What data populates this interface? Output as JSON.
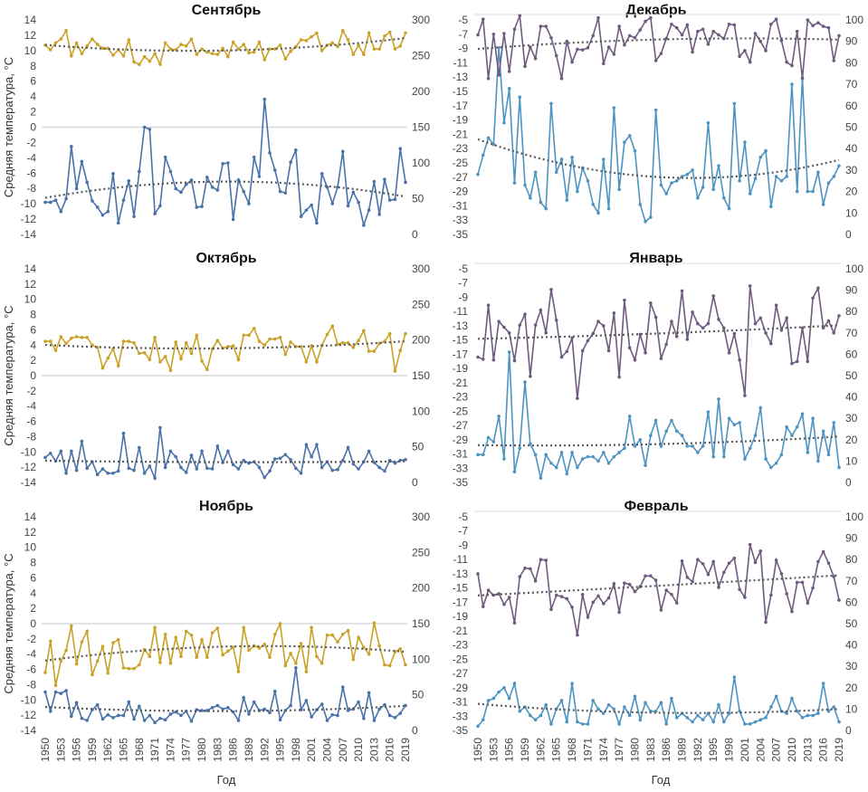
{
  "colors": {
    "temp_left": "#c9a227",
    "precip_left": "#4a72a8",
    "temp_right": "#6f5b7e",
    "precip_right": "#4d94c2",
    "trend": "#5a5a5a",
    "grid": "#d9d9d9"
  },
  "axis_label_y": "Средняя температура, °С",
  "axis_label_x": "Год",
  "chart_data": [
    {
      "type": "line",
      "title": "Сентябрь",
      "ylim_left": [
        -14,
        14
      ],
      "yticks_left_step": 2,
      "ylim_right": [
        0,
        300
      ],
      "yticks_right_step": 50,
      "x_start": 1950,
      "x_tick_step": 3,
      "trendline": "dotted",
      "temperature": [
        10.7,
        10.1,
        11,
        11.5,
        12.6,
        9.3,
        11,
        9.6,
        10.6,
        11.5,
        10.8,
        10.3,
        10.3,
        9.4,
        10.1,
        9.3,
        11.4,
        8.5,
        8.2,
        9.2,
        8.6,
        9.6,
        8.2,
        11,
        10.2,
        10.1,
        10.8,
        10.6,
        11.5,
        9.5,
        10.2,
        9.8,
        9.6,
        9.5,
        10.3,
        9.2,
        11.1,
        10.2,
        10.8,
        9.7,
        9.8,
        11.1,
        8.8,
        10.2,
        10.2,
        10.7,
        8.9,
        9.9,
        10.5,
        11.4,
        11.3,
        11.8,
        12.3,
        10,
        10.7,
        11,
        10.5,
        12.6,
        11.4,
        9.5,
        10.7,
        9.5,
        12.3,
        10.2,
        10.2,
        11.9,
        12.4,
        10.2,
        10.6,
        12.3
      ],
      "precipitation": [
        45,
        45,
        48,
        32,
        50,
        123,
        64,
        102,
        73,
        47,
        38,
        27,
        32,
        85,
        16,
        48,
        75,
        25,
        88,
        150,
        147,
        29,
        40,
        108,
        88,
        64,
        59,
        70,
        76,
        38,
        39,
        80,
        66,
        62,
        99,
        100,
        21,
        76,
        60,
        43,
        108,
        81,
        189,
        114,
        90,
        60,
        58,
        101,
        118,
        25,
        34,
        41,
        16,
        85,
        66,
        43,
        66,
        116,
        40,
        59,
        45,
        13,
        34,
        74,
        28,
        77,
        48,
        49,
        120,
        73
      ]
    },
    {
      "type": "line",
      "title": "Октябрь",
      "ylim_left": [
        -14,
        14
      ],
      "yticks_left_step": 2,
      "ylim_right": [
        0,
        300
      ],
      "yticks_right_step": 50,
      "x_start": 1950,
      "x_tick_step": 3,
      "trendline": "dotted",
      "temperature": [
        4.5,
        4.5,
        3.3,
        5.1,
        4.2,
        4.9,
        5.1,
        5,
        5,
        4,
        3.7,
        1,
        2.3,
        3.5,
        1.3,
        4.5,
        4.5,
        4.3,
        2.9,
        3,
        2.1,
        5,
        1.8,
        2.5,
        0.7,
        4.4,
        2.2,
        4.3,
        2.9,
        5.3,
        1.9,
        0.8,
        3.5,
        4.6,
        3.6,
        3.8,
        3.9,
        2.1,
        5.3,
        5.3,
        6.2,
        4.5,
        4,
        4.8,
        4.8,
        5,
        2.8,
        4.4,
        3.8,
        3.8,
        1.8,
        3.9,
        1.8,
        4,
        5.4,
        6.5,
        4.1,
        4.3,
        4.3,
        3.7,
        4.6,
        5.9,
        3.2,
        3.2,
        4.2,
        4.5,
        5.5,
        0.6,
        3.3,
        5.5
      ],
      "precipitation": [
        35,
        41,
        30,
        44,
        13,
        44,
        17,
        58,
        20,
        29,
        11,
        19,
        13,
        13,
        16,
        69,
        20,
        17,
        49,
        13,
        23,
        6,
        77,
        21,
        44,
        36,
        21,
        14,
        38,
        19,
        44,
        20,
        19,
        51,
        28,
        44,
        25,
        19,
        31,
        27,
        29,
        21,
        7,
        16,
        33,
        34,
        39,
        32,
        20,
        13,
        53,
        36,
        53,
        21,
        29,
        17,
        18,
        31,
        49,
        26,
        19,
        29,
        44,
        28,
        21,
        16,
        31,
        27,
        31,
        32
      ]
    },
    {
      "type": "line",
      "title": "Ноябрь",
      "ylim_left": [
        -14,
        14
      ],
      "yticks_left_step": 2,
      "ylim_right": [
        0,
        300
      ],
      "yticks_right_step": 50,
      "x_start": 1950,
      "x_tick_step": 3,
      "trendline": "dotted",
      "temperature": [
        -6.4,
        -2.3,
        -8.1,
        -4.9,
        -3.5,
        -0.3,
        -5.3,
        -2.4,
        -1,
        -6.7,
        -4.9,
        -3,
        -6.5,
        -2.5,
        -2.1,
        -5.8,
        -5.9,
        -5.9,
        -5.4,
        -3.4,
        -4.3,
        -0.5,
        -5.1,
        -1.4,
        -5.2,
        -1.8,
        -4.3,
        -1,
        -1.5,
        -4.4,
        -2.1,
        -4.4,
        -1.2,
        -0.6,
        -4.1,
        -3.6,
        -3.1,
        -6.3,
        -0.5,
        -3.5,
        -2.9,
        -3.2,
        -2.7,
        -4.4,
        -1.4,
        0,
        -5.5,
        -3.9,
        -5.2,
        -2.6,
        -6.3,
        -0.5,
        -4.3,
        -5.2,
        -1.5,
        -1.5,
        -2.4,
        -1.4,
        -0.9,
        -4.7,
        -1.8,
        -3.1,
        -4,
        0.1,
        -2.9,
        -5.4,
        -5.5,
        -3.7,
        -3.3,
        -5.4
      ],
      "precipitation": [
        54,
        27,
        54,
        52,
        56,
        20,
        39,
        17,
        14,
        29,
        36,
        16,
        22,
        18,
        21,
        21,
        40,
        16,
        34,
        14,
        21,
        11,
        17,
        15,
        23,
        26,
        21,
        27,
        13,
        29,
        28,
        28,
        32,
        35,
        30,
        32,
        26,
        14,
        46,
        23,
        40,
        28,
        30,
        25,
        55,
        15,
        28,
        35,
        88,
        29,
        42,
        19,
        29,
        37,
        14,
        22,
        21,
        61,
        28,
        30,
        40,
        17,
        53,
        14,
        30,
        36,
        21,
        18,
        24,
        35
      ]
    },
    {
      "type": "line",
      "title": "Декабрь",
      "ylim_left": [
        -35,
        -5
      ],
      "yticks_left_step": 2,
      "ylim_right": [
        0,
        100
      ],
      "yticks_right_step": 10,
      "x_start": 1950,
      "x_tick_step": 3,
      "trendline": "dotted",
      "temperature": [
        -7.1,
        -4.9,
        -13.2,
        -7,
        -12.7,
        -6.9,
        -12.2,
        -6.3,
        -4.4,
        -11.5,
        -8.8,
        -10.4,
        -5.9,
        -5.9,
        -7.5,
        -10,
        -13.2,
        -8,
        -10.9,
        -9.1,
        -9.2,
        -8.9,
        -7.2,
        -4.7,
        -11.1,
        -8.8,
        -9.8,
        -5.9,
        -8.5,
        -7.2,
        -7.5,
        -6.4,
        -5.2,
        -4.7,
        -10.7,
        -9.7,
        -7.6,
        -5.6,
        -6.1,
        -7.1,
        -5.7,
        -9.5,
        -6.6,
        -6.3,
        -8.4,
        -6.6,
        -7.1,
        -7.6,
        -5.6,
        -5.7,
        -10.1,
        -9.3,
        -10.9,
        -6.9,
        -8,
        -9.3,
        -5.6,
        -4.9,
        -7.9,
        -10.9,
        -11.4,
        -6.6,
        -13.2,
        -5,
        -5.8,
        -5.4,
        -5.9,
        -6.1,
        -10.7,
        -7.2
      ],
      "precipitation": [
        28,
        37,
        45,
        42,
        87,
        52,
        68,
        24,
        64,
        23,
        17,
        29,
        15,
        12,
        61,
        29,
        35,
        16,
        36,
        20,
        31,
        25,
        14,
        10,
        35,
        12,
        59,
        21,
        43,
        46,
        39,
        14,
        6,
        8,
        58,
        23,
        19,
        24,
        25,
        27,
        28,
        30,
        17,
        22,
        52,
        21,
        32,
        17,
        12,
        61,
        25,
        43,
        19,
        26,
        36,
        39,
        13,
        27,
        25,
        27,
        70,
        20,
        73,
        20,
        20,
        29,
        14,
        24,
        27,
        32
      ]
    },
    {
      "type": "line",
      "title": "Январь",
      "ylim_left": [
        -35,
        -5
      ],
      "yticks_left_step": 2,
      "ylim_right": [
        0,
        100
      ],
      "yticks_right_step": 10,
      "x_start": 1950,
      "x_tick_step": 3,
      "trendline": "dotted",
      "temperature": [
        -17.4,
        -17.7,
        -10.1,
        -17.8,
        -12.4,
        -13.2,
        -14,
        -17.9,
        -12.9,
        -11.4,
        -20.1,
        -12.9,
        -10.8,
        -14,
        -7.9,
        -12.2,
        -17.4,
        -16.6,
        -14.7,
        -23.2,
        -16.5,
        -15.1,
        -14.1,
        -12.4,
        -13,
        -16.5,
        -11.2,
        -20.2,
        -9.4,
        -16.1,
        -17.8,
        -14.2,
        -16.8,
        -9.8,
        -11.8,
        -17.6,
        -15.6,
        -12.4,
        -14.5,
        -8.1,
        -14.9,
        -11.1,
        -12.7,
        -13.3,
        -12.7,
        -8.8,
        -12.1,
        -13.3,
        -16.8,
        -14.1,
        -17.8,
        -22.8,
        -7.4,
        -12.7,
        -11.9,
        -14,
        -15.5,
        -10.1,
        -13.6,
        -11.9,
        -18.3,
        -18,
        -13.3,
        -18,
        -9.1,
        -7.7,
        -13.3,
        -12.3,
        -14,
        -11.6
      ],
      "precipitation": [
        13,
        13,
        21,
        19,
        31,
        11,
        61,
        5,
        16,
        47,
        18,
        13,
        2,
        13,
        9,
        7,
        14,
        4,
        14,
        7,
        11,
        12,
        12,
        10,
        14,
        9,
        12,
        14,
        16,
        31,
        17,
        20,
        8,
        22,
        29,
        17,
        24,
        29,
        24,
        22,
        17,
        17,
        14,
        17,
        33,
        12,
        39,
        12,
        30,
        27,
        28,
        11,
        16,
        22,
        35,
        11,
        7,
        9,
        13,
        26,
        22,
        26,
        32,
        14,
        30,
        10,
        24,
        13,
        28,
        7
      ]
    },
    {
      "type": "line",
      "title": "Февраль",
      "ylim_left": [
        -35,
        -5
      ],
      "yticks_left_step": 2,
      "ylim_right": [
        0,
        100
      ],
      "yticks_right_step": 10,
      "x_start": 1950,
      "x_tick_step": 3,
      "trendline": "dotted",
      "temperature": [
        -13,
        -17.6,
        -15.3,
        -16,
        -15.8,
        -17.3,
        -16.3,
        -19.9,
        -13.4,
        -12.2,
        -12.3,
        -14,
        -11,
        -11.1,
        -18,
        -16,
        -16.2,
        -16.5,
        -17.7,
        -21.6,
        -15.9,
        -19.1,
        -17,
        -16.1,
        -17.2,
        -16.4,
        -14.4,
        -18.4,
        -14.3,
        -14.5,
        -15.5,
        -14.8,
        -13.3,
        -13.3,
        -13.9,
        -18.1,
        -15.3,
        -15.9,
        -17.1,
        -11.2,
        -13.5,
        -14.1,
        -11,
        -11.6,
        -13.1,
        -11.3,
        -14.9,
        -12.8,
        -11.5,
        -10.8,
        -15.2,
        -16.3,
        -8.9,
        -11.4,
        -9.8,
        -19.8,
        -16,
        -11.1,
        -13,
        -15.8,
        -18.3,
        -14.2,
        -14.2,
        -17.1,
        -15,
        -11.3,
        -9.9,
        -11.5,
        -13.4,
        -16.7
      ],
      "precipitation": [
        2,
        5,
        14,
        15,
        18,
        20,
        15,
        22,
        9,
        11,
        7,
        5,
        7,
        12,
        3,
        10,
        14,
        4,
        22,
        4,
        3,
        3,
        14,
        10,
        8,
        12,
        10,
        3,
        11,
        7,
        16,
        5,
        13,
        9,
        9,
        13,
        3,
        15,
        6,
        8,
        6,
        4,
        7,
        5,
        8,
        4,
        12,
        4,
        8,
        25,
        9,
        3,
        3,
        4,
        5,
        6,
        11,
        16,
        9,
        8,
        15,
        9,
        6,
        7,
        7,
        8,
        22,
        9,
        11,
        4
      ]
    }
  ]
}
